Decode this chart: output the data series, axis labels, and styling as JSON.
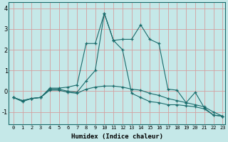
{
  "xlabel": "Humidex (Indice chaleur)",
  "bg_color": "#c5e8e8",
  "grid_color_v": "#d4a0a0",
  "grid_color_h": "#c0d8d8",
  "line_color": "#1a6b6b",
  "xlim": [
    -0.5,
    23.3
  ],
  "ylim": [
    -1.6,
    4.3
  ],
  "x": [
    0,
    1,
    2,
    3,
    4,
    5,
    6,
    7,
    8,
    9,
    10,
    11,
    12,
    13,
    14,
    15,
    16,
    17,
    18,
    19,
    20,
    21,
    22,
    23
  ],
  "line1": [
    -0.3,
    -0.5,
    -0.35,
    -0.3,
    0.15,
    0.15,
    0.2,
    0.3,
    2.3,
    2.3,
    3.75,
    2.45,
    2.5,
    2.5,
    3.2,
    2.5,
    2.3,
    0.1,
    0.05,
    -0.55,
    -0.05,
    -0.8,
    -1.15,
    -1.2
  ],
  "line2": [
    -0.3,
    -0.45,
    -0.35,
    -0.3,
    0.1,
    0.1,
    0.0,
    -0.05,
    0.5,
    1.0,
    3.75,
    2.45,
    2.0,
    -0.1,
    -0.3,
    -0.5,
    -0.55,
    -0.65,
    -0.65,
    -0.7,
    -0.75,
    -0.85,
    -1.15,
    -1.2
  ],
  "line3": [
    -0.3,
    -0.45,
    -0.35,
    -0.3,
    0.05,
    0.05,
    -0.05,
    -0.1,
    0.1,
    0.2,
    0.25,
    0.25,
    0.2,
    0.1,
    0.05,
    -0.1,
    -0.2,
    -0.35,
    -0.45,
    -0.55,
    -0.65,
    -0.75,
    -1.0,
    -1.2
  ],
  "xticks": [
    0,
    1,
    2,
    3,
    4,
    5,
    6,
    7,
    8,
    9,
    10,
    11,
    12,
    13,
    14,
    15,
    16,
    17,
    18,
    19,
    20,
    21,
    22,
    23
  ],
  "yticks": [
    -1,
    0,
    1,
    2,
    3,
    4
  ]
}
